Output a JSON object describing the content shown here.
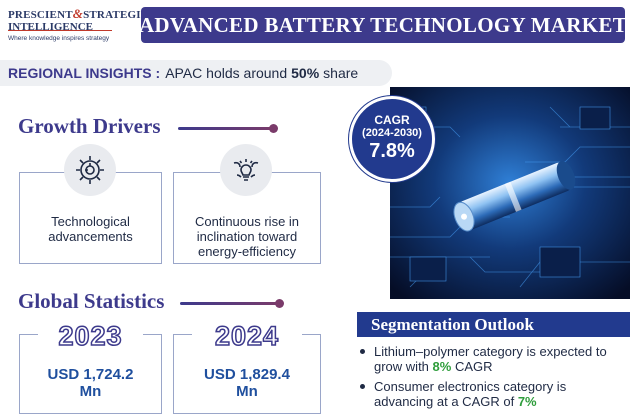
{
  "logo": {
    "line1_a": "PRESCIENT",
    "amp": "&",
    "line1_b": "STRATEGIC",
    "line2": "INTELLIGENCE",
    "tagline": "Where knowledge inspires strategy"
  },
  "title": "ADVANCED BATTERY TECHNOLOGY MARKET",
  "regional": {
    "label": "REGIONAL INSIGHTS :",
    "text_before": "APAC holds around",
    "share": "50%",
    "text_after": "share"
  },
  "growth_drivers": {
    "heading": "Growth Drivers",
    "items": [
      {
        "icon": "gear-circuit-icon",
        "text": "Technological advancements"
      },
      {
        "icon": "lightbulb-leaf-icon",
        "text": "Continuous rise in inclination toward energy-efficiency"
      }
    ]
  },
  "global_statistics": {
    "heading": "Global Statistics",
    "items": [
      {
        "year": "2023",
        "value_line1": "USD 1,724.2",
        "value_line2": "Mn"
      },
      {
        "year": "2024",
        "value_line1": "USD 1,829.4",
        "value_line2": "Mn"
      }
    ]
  },
  "cagr": {
    "label": "CAGR",
    "period": "(2024-2030)",
    "value": "7.8%"
  },
  "segmentation": {
    "heading": "Segmentation Outlook",
    "items": [
      {
        "text": "Lithium–polymer category is expected to grow with",
        "highlight": "8%",
        "suffix": "CAGR"
      },
      {
        "text": "Consumer electronics category is advancing at a CAGR of",
        "highlight": "7%",
        "suffix": ""
      }
    ]
  },
  "colors": {
    "primary": "#3d3a8c",
    "accent_blue": "#223a8e",
    "highlight_green": "#2e9d3b",
    "logo_red": "#c0392b"
  }
}
